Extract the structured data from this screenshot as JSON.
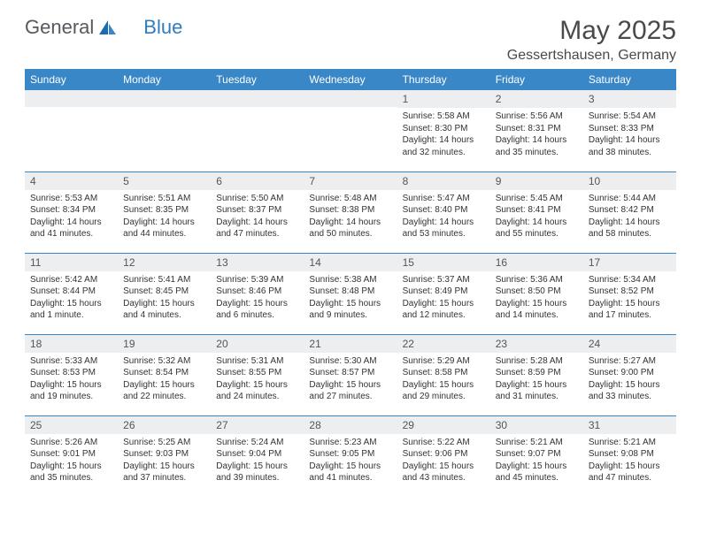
{
  "brand": {
    "word1": "General",
    "word2": "Blue"
  },
  "title": "May 2025",
  "location": "Gessertshausen, Germany",
  "colors": {
    "header_bg": "#3a87c8",
    "header_text": "#ffffff",
    "daynum_bg": "#eceeef",
    "row_divider": "#3a87c8",
    "title_color": "#4a4a4a"
  },
  "dayNames": [
    "Sunday",
    "Monday",
    "Tuesday",
    "Wednesday",
    "Thursday",
    "Friday",
    "Saturday"
  ],
  "weeks": [
    [
      null,
      null,
      null,
      null,
      {
        "n": "1",
        "sr": "Sunrise: 5:58 AM",
        "ss": "Sunset: 8:30 PM",
        "d1": "Daylight: 14 hours",
        "d2": "and 32 minutes."
      },
      {
        "n": "2",
        "sr": "Sunrise: 5:56 AM",
        "ss": "Sunset: 8:31 PM",
        "d1": "Daylight: 14 hours",
        "d2": "and 35 minutes."
      },
      {
        "n": "3",
        "sr": "Sunrise: 5:54 AM",
        "ss": "Sunset: 8:33 PM",
        "d1": "Daylight: 14 hours",
        "d2": "and 38 minutes."
      }
    ],
    [
      {
        "n": "4",
        "sr": "Sunrise: 5:53 AM",
        "ss": "Sunset: 8:34 PM",
        "d1": "Daylight: 14 hours",
        "d2": "and 41 minutes."
      },
      {
        "n": "5",
        "sr": "Sunrise: 5:51 AM",
        "ss": "Sunset: 8:35 PM",
        "d1": "Daylight: 14 hours",
        "d2": "and 44 minutes."
      },
      {
        "n": "6",
        "sr": "Sunrise: 5:50 AM",
        "ss": "Sunset: 8:37 PM",
        "d1": "Daylight: 14 hours",
        "d2": "and 47 minutes."
      },
      {
        "n": "7",
        "sr": "Sunrise: 5:48 AM",
        "ss": "Sunset: 8:38 PM",
        "d1": "Daylight: 14 hours",
        "d2": "and 50 minutes."
      },
      {
        "n": "8",
        "sr": "Sunrise: 5:47 AM",
        "ss": "Sunset: 8:40 PM",
        "d1": "Daylight: 14 hours",
        "d2": "and 53 minutes."
      },
      {
        "n": "9",
        "sr": "Sunrise: 5:45 AM",
        "ss": "Sunset: 8:41 PM",
        "d1": "Daylight: 14 hours",
        "d2": "and 55 minutes."
      },
      {
        "n": "10",
        "sr": "Sunrise: 5:44 AM",
        "ss": "Sunset: 8:42 PM",
        "d1": "Daylight: 14 hours",
        "d2": "and 58 minutes."
      }
    ],
    [
      {
        "n": "11",
        "sr": "Sunrise: 5:42 AM",
        "ss": "Sunset: 8:44 PM",
        "d1": "Daylight: 15 hours",
        "d2": "and 1 minute."
      },
      {
        "n": "12",
        "sr": "Sunrise: 5:41 AM",
        "ss": "Sunset: 8:45 PM",
        "d1": "Daylight: 15 hours",
        "d2": "and 4 minutes."
      },
      {
        "n": "13",
        "sr": "Sunrise: 5:39 AM",
        "ss": "Sunset: 8:46 PM",
        "d1": "Daylight: 15 hours",
        "d2": "and 6 minutes."
      },
      {
        "n": "14",
        "sr": "Sunrise: 5:38 AM",
        "ss": "Sunset: 8:48 PM",
        "d1": "Daylight: 15 hours",
        "d2": "and 9 minutes."
      },
      {
        "n": "15",
        "sr": "Sunrise: 5:37 AM",
        "ss": "Sunset: 8:49 PM",
        "d1": "Daylight: 15 hours",
        "d2": "and 12 minutes."
      },
      {
        "n": "16",
        "sr": "Sunrise: 5:36 AM",
        "ss": "Sunset: 8:50 PM",
        "d1": "Daylight: 15 hours",
        "d2": "and 14 minutes."
      },
      {
        "n": "17",
        "sr": "Sunrise: 5:34 AM",
        "ss": "Sunset: 8:52 PM",
        "d1": "Daylight: 15 hours",
        "d2": "and 17 minutes."
      }
    ],
    [
      {
        "n": "18",
        "sr": "Sunrise: 5:33 AM",
        "ss": "Sunset: 8:53 PM",
        "d1": "Daylight: 15 hours",
        "d2": "and 19 minutes."
      },
      {
        "n": "19",
        "sr": "Sunrise: 5:32 AM",
        "ss": "Sunset: 8:54 PM",
        "d1": "Daylight: 15 hours",
        "d2": "and 22 minutes."
      },
      {
        "n": "20",
        "sr": "Sunrise: 5:31 AM",
        "ss": "Sunset: 8:55 PM",
        "d1": "Daylight: 15 hours",
        "d2": "and 24 minutes."
      },
      {
        "n": "21",
        "sr": "Sunrise: 5:30 AM",
        "ss": "Sunset: 8:57 PM",
        "d1": "Daylight: 15 hours",
        "d2": "and 27 minutes."
      },
      {
        "n": "22",
        "sr": "Sunrise: 5:29 AM",
        "ss": "Sunset: 8:58 PM",
        "d1": "Daylight: 15 hours",
        "d2": "and 29 minutes."
      },
      {
        "n": "23",
        "sr": "Sunrise: 5:28 AM",
        "ss": "Sunset: 8:59 PM",
        "d1": "Daylight: 15 hours",
        "d2": "and 31 minutes."
      },
      {
        "n": "24",
        "sr": "Sunrise: 5:27 AM",
        "ss": "Sunset: 9:00 PM",
        "d1": "Daylight: 15 hours",
        "d2": "and 33 minutes."
      }
    ],
    [
      {
        "n": "25",
        "sr": "Sunrise: 5:26 AM",
        "ss": "Sunset: 9:01 PM",
        "d1": "Daylight: 15 hours",
        "d2": "and 35 minutes."
      },
      {
        "n": "26",
        "sr": "Sunrise: 5:25 AM",
        "ss": "Sunset: 9:03 PM",
        "d1": "Daylight: 15 hours",
        "d2": "and 37 minutes."
      },
      {
        "n": "27",
        "sr": "Sunrise: 5:24 AM",
        "ss": "Sunset: 9:04 PM",
        "d1": "Daylight: 15 hours",
        "d2": "and 39 minutes."
      },
      {
        "n": "28",
        "sr": "Sunrise: 5:23 AM",
        "ss": "Sunset: 9:05 PM",
        "d1": "Daylight: 15 hours",
        "d2": "and 41 minutes."
      },
      {
        "n": "29",
        "sr": "Sunrise: 5:22 AM",
        "ss": "Sunset: 9:06 PM",
        "d1": "Daylight: 15 hours",
        "d2": "and 43 minutes."
      },
      {
        "n": "30",
        "sr": "Sunrise: 5:21 AM",
        "ss": "Sunset: 9:07 PM",
        "d1": "Daylight: 15 hours",
        "d2": "and 45 minutes."
      },
      {
        "n": "31",
        "sr": "Sunrise: 5:21 AM",
        "ss": "Sunset: 9:08 PM",
        "d1": "Daylight: 15 hours",
        "d2": "and 47 minutes."
      }
    ]
  ]
}
